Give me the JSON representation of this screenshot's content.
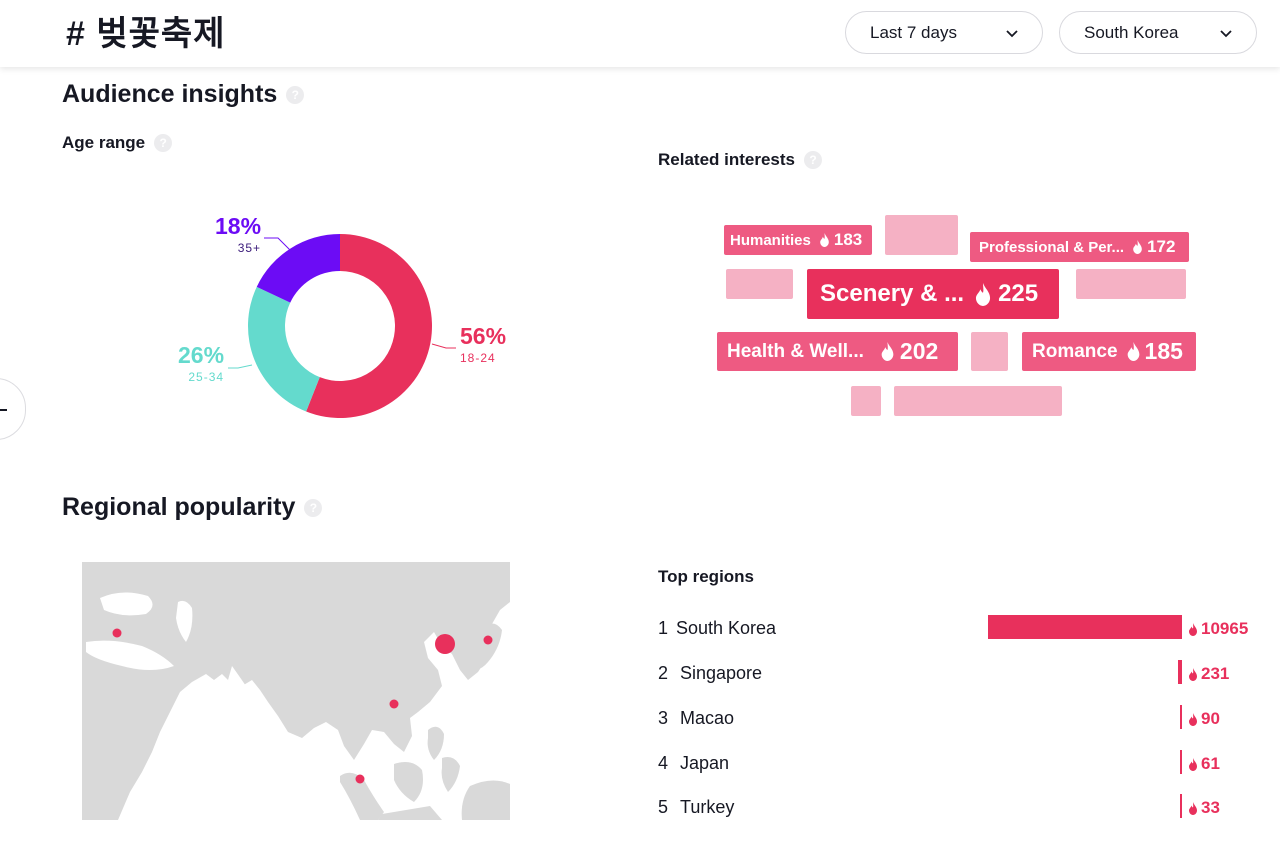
{
  "header": {
    "hashtag": "# 벚꽃축제",
    "period_dropdown": "Last 7 days",
    "country_dropdown": "South Korea"
  },
  "audience": {
    "title": "Audience insights",
    "age_range_title": "Age range",
    "related_interests_title": "Related interests"
  },
  "age_chart": {
    "chart_data": {
      "type": "pie",
      "title": "Age range",
      "slices": [
        {
          "label": "18-24",
          "percent_label": "56%",
          "value": 56,
          "color": "#e8305c"
        },
        {
          "label": "25-34",
          "percent_label": "26%",
          "value": 26,
          "color": "#64dacd"
        },
        {
          "label": "35+",
          "percent_label": "18%",
          "value": 18,
          "color": "#6c0cf5"
        }
      ]
    }
  },
  "interests": {
    "humanities": {
      "label": "Humanities",
      "value": "183"
    },
    "professional": {
      "label": "Professional & Per...",
      "value": "172"
    },
    "scenery": {
      "label": "Scenery & ...",
      "value": "225"
    },
    "health": {
      "label": "Health & Well...",
      "value": "202"
    },
    "romance": {
      "label": "Romance",
      "value": "185"
    },
    "chip_color": "#ee5a82",
    "primary_color": "#e8305c",
    "ghost_color": "#f5b1c4"
  },
  "regional": {
    "title": "Regional popularity",
    "top_regions_title": "Top regions",
    "regions": [
      {
        "rank": "1",
        "name": "South Korea",
        "value": "10965",
        "share": 1.0
      },
      {
        "rank": "2",
        "name": "Singapore",
        "value": "231",
        "share": 0.021
      },
      {
        "rank": "3",
        "name": "Macao",
        "value": "90",
        "share": 0.008
      },
      {
        "rank": "4",
        "name": "Japan",
        "value": "61",
        "share": 0.006
      },
      {
        "rank": "5",
        "name": "Turkey",
        "value": "33",
        "share": 0.003
      }
    ]
  },
  "colors": {
    "accent": "#e8305c",
    "teal": "#64dacd",
    "purple": "#6c0cf5",
    "map_land": "#d9d9d9"
  }
}
